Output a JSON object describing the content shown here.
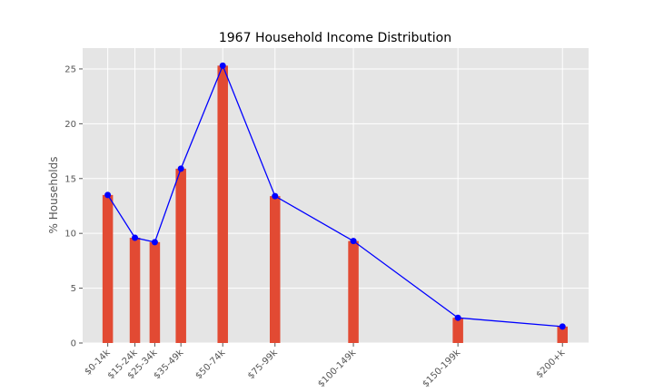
{
  "chart_data": {
    "type": "bar",
    "title": "1967 Household Income Distribution",
    "xlabel": "",
    "ylabel": "% Households",
    "categories": [
      "$0-14k",
      "$15-24k",
      "$25-34k",
      "$35-49k",
      "$50-74k",
      "$75-99k",
      "$100-149k",
      "$150-199k",
      "$200+k"
    ],
    "x_positions": [
      7,
      20,
      29.5,
      42,
      62,
      87,
      124.5,
      174.5,
      224.5
    ],
    "xlim": [
      -5,
      237
    ],
    "values": [
      13.5,
      9.6,
      9.2,
      15.9,
      25.3,
      13.4,
      9.3,
      2.3,
      1.5
    ],
    "bar_width": 5,
    "bar_color": "#E24A33",
    "line_color": "#0000FF",
    "ylim": [
      0,
      26.9
    ],
    "yticks": [
      0,
      5,
      10,
      15,
      20,
      25
    ],
    "grid": true,
    "plot_background": "#E5E5E5",
    "series": [
      {
        "values": [
          13.5,
          9.6,
          9.2,
          15.9,
          25.3,
          13.4,
          9.3,
          2.3,
          1.5
        ],
        "type": "bar"
      },
      {
        "values": [
          13.5,
          9.6,
          9.2,
          15.9,
          25.3,
          13.4,
          9.3,
          2.3,
          1.5
        ],
        "type": "line",
        "marker": "circle"
      }
    ]
  }
}
